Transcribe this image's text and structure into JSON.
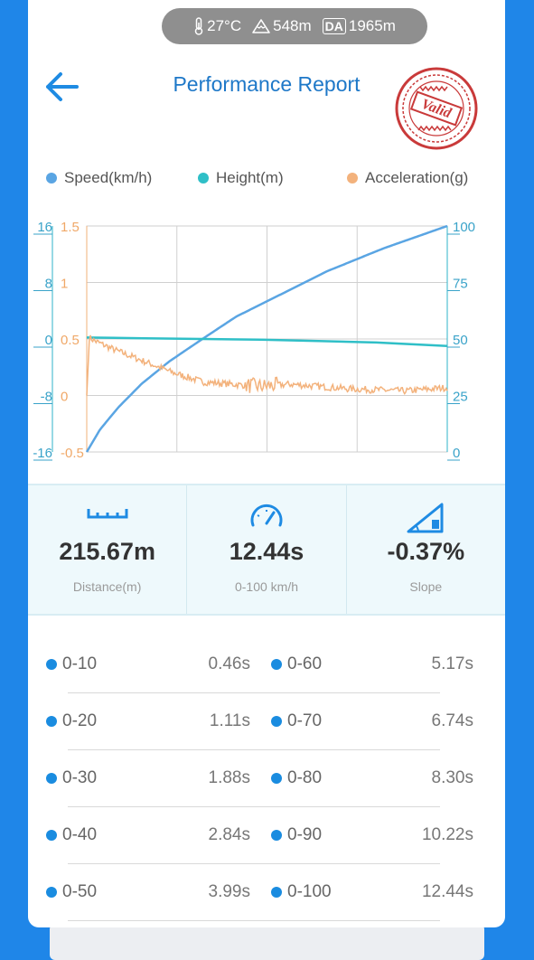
{
  "env": {
    "temperature": "27°C",
    "altitude": "548m",
    "da_badge": "DA",
    "density_altitude": "1965m"
  },
  "header": {
    "title": "Performance Report",
    "stamp_text": "Valid"
  },
  "legend": {
    "speed": "Speed(km/h)",
    "height": "Height(m)",
    "acceleration": "Acceleration(g)"
  },
  "colors": {
    "speed": "#5aa5e3",
    "height": "#2fbfc7",
    "acceleration": "#f3b27c",
    "accent": "#1e78c8",
    "stamp": "#c93a3a"
  },
  "chart_data": {
    "type": "line",
    "axes": {
      "height_axis": {
        "ticks": [
          "16",
          "8",
          "0",
          "-8",
          "-16"
        ],
        "range": [
          -16,
          16
        ]
      },
      "accel_axis": {
        "ticks": [
          "1.5",
          "1",
          "0.5",
          "0",
          "-0.5"
        ],
        "range": [
          -0.5,
          1.5
        ]
      },
      "speed_axis": {
        "ticks": [
          "100",
          "75",
          "50",
          "25",
          "0"
        ],
        "range": [
          0,
          100
        ]
      },
      "time_range_s": [
        0,
        12.44
      ]
    },
    "grid": true,
    "series": [
      {
        "name": "Speed(km/h)",
        "x": [
          0,
          0.46,
          1.11,
          1.88,
          2.84,
          3.99,
          5.17,
          6.74,
          8.3,
          10.22,
          12.44
        ],
        "values": [
          0,
          10,
          20,
          30,
          40,
          50,
          60,
          70,
          80,
          90,
          100
        ]
      },
      {
        "name": "Height(m)",
        "x": [
          0,
          2,
          4,
          6,
          8,
          10,
          12.44
        ],
        "values": [
          0.2,
          0.1,
          0.0,
          -0.1,
          -0.3,
          -0.5,
          -1.0
        ]
      },
      {
        "name": "Acceleration(g)",
        "x": [
          0,
          0.05,
          0.3,
          1,
          2,
          3,
          4,
          5,
          6,
          7,
          8,
          9,
          10,
          11,
          12,
          12.44
        ],
        "values": [
          0,
          0.52,
          0.48,
          0.4,
          0.3,
          0.2,
          0.12,
          0.1,
          0.08,
          0.1,
          0.08,
          0.06,
          0.05,
          0.04,
          0.06,
          0.07
        ]
      }
    ]
  },
  "stats": [
    {
      "value": "215.67m",
      "label": "Distance(m)",
      "icon": "ruler-icon"
    },
    {
      "value": "12.44s",
      "label": "0-100 km/h",
      "icon": "speedometer-icon"
    },
    {
      "value": "-0.37%",
      "label": "Slope",
      "icon": "slope-icon"
    }
  ],
  "splits": [
    {
      "left": {
        "range": "0-10",
        "time": "0.46s"
      },
      "right": {
        "range": "0-60",
        "time": "5.17s"
      }
    },
    {
      "left": {
        "range": "0-20",
        "time": "1.11s"
      },
      "right": {
        "range": "0-70",
        "time": "6.74s"
      }
    },
    {
      "left": {
        "range": "0-30",
        "time": "1.88s"
      },
      "right": {
        "range": "0-80",
        "time": "8.30s"
      }
    },
    {
      "left": {
        "range": "0-40",
        "time": "2.84s"
      },
      "right": {
        "range": "0-90",
        "time": "10.22s"
      }
    },
    {
      "left": {
        "range": "0-50",
        "time": "3.99s"
      },
      "right": {
        "range": "0-100",
        "time": "12.44s"
      }
    }
  ]
}
